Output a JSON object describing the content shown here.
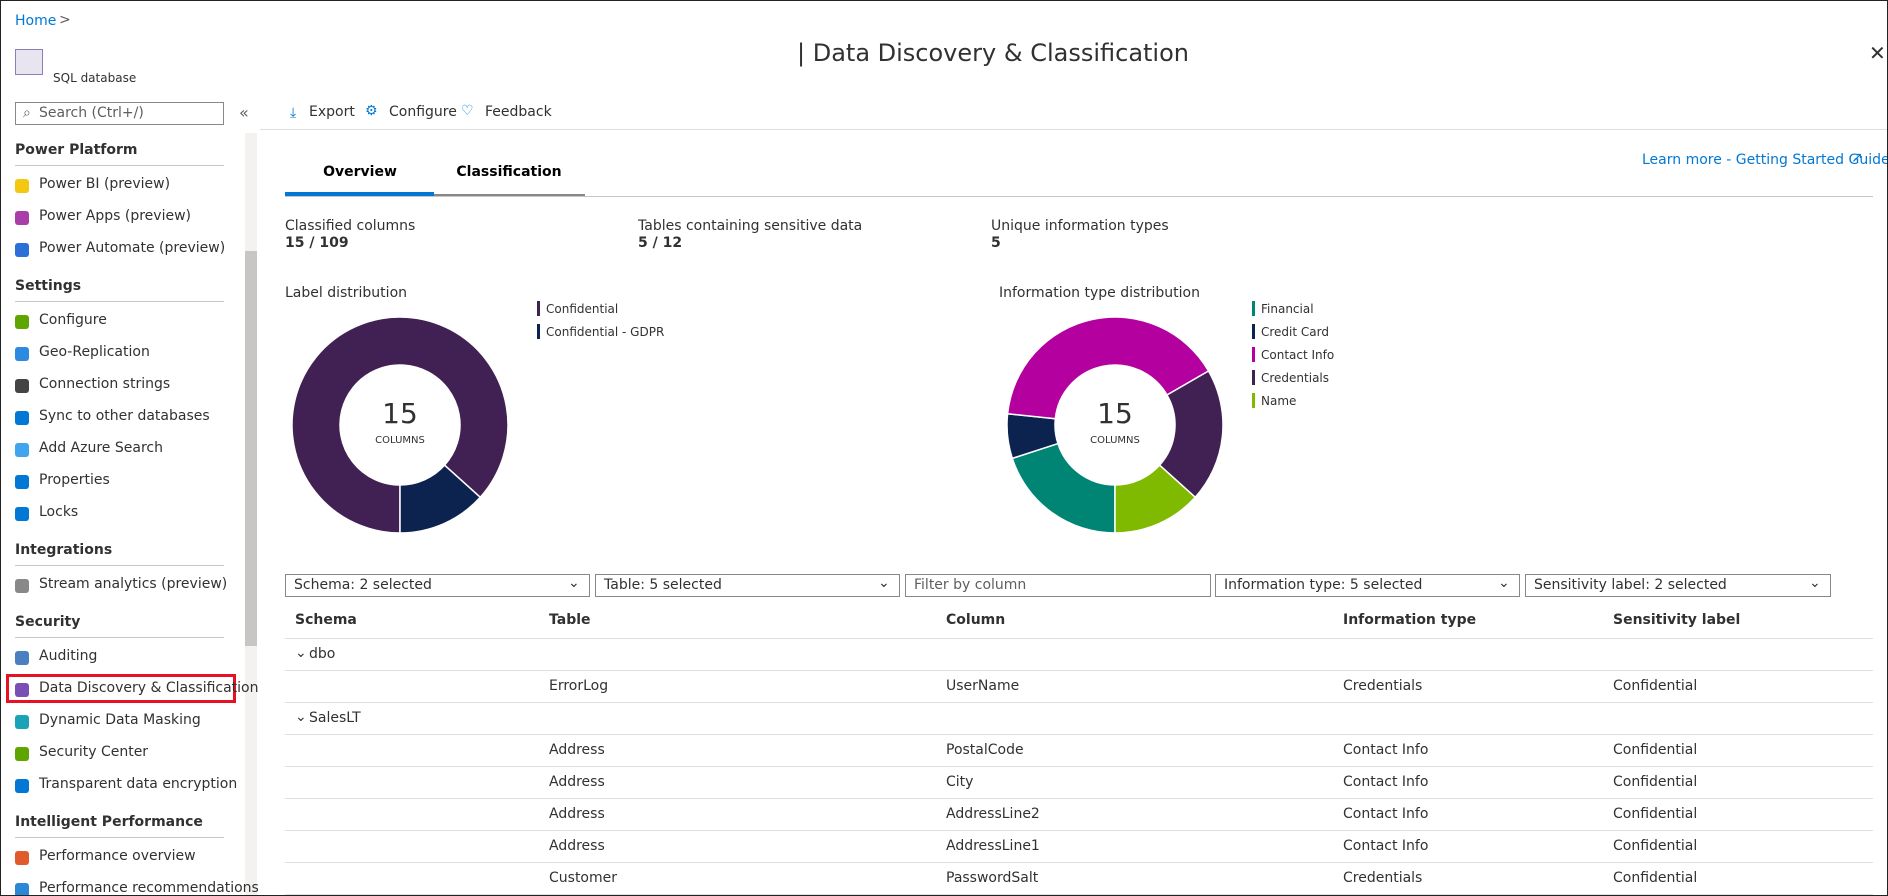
{
  "breadcrumb": {
    "home": "Home"
  },
  "resource": {
    "title": "| Data Discovery & Classification",
    "subtitle": "SQL database"
  },
  "sidebar": {
    "search_placeholder": "Search (Ctrl+/)",
    "sections": [
      {
        "title": "Power Platform",
        "items": [
          "Power BI (preview)",
          "Power Apps (preview)",
          "Power Automate (preview)"
        ]
      },
      {
        "title": "Settings",
        "items": [
          "Configure",
          "Geo-Replication",
          "Connection strings",
          "Sync to other databases",
          "Add Azure Search",
          "Properties",
          "Locks"
        ]
      },
      {
        "title": "Integrations",
        "items": [
          "Stream analytics (preview)"
        ]
      },
      {
        "title": "Security",
        "items": [
          "Auditing",
          "Data Discovery & Classification",
          "Dynamic Data Masking",
          "Security Center",
          "Transparent data encryption"
        ]
      },
      {
        "title": "Intelligent Performance",
        "items": [
          "Performance overview",
          "Performance recommendations"
        ]
      }
    ]
  },
  "toolbar": [
    "Export",
    "Configure",
    "Feedback"
  ],
  "tabs": [
    "Overview",
    "Classification"
  ],
  "learn_more": "Learn more - Getting Started Guide",
  "stats": [
    {
      "label": "Classified columns",
      "value": "15 / 109"
    },
    {
      "label": "Tables containing sensitive data",
      "value": "5 / 12"
    },
    {
      "label": "Unique information types",
      "value": "5"
    }
  ],
  "chart_data": [
    {
      "type": "donut",
      "title": "Label distribution",
      "total": 15,
      "center_label": "COLUMNS",
      "categories": [
        "Confidential",
        "Confidential - GDPR"
      ],
      "values": [
        13,
        2
      ],
      "colors": [
        "#412153",
        "#0c2350"
      ]
    },
    {
      "type": "donut",
      "title": "Information type distribution",
      "total": 15,
      "center_label": "COLUMNS",
      "categories": [
        "Financial",
        "Credit Card",
        "Contact Info",
        "Credentials",
        "Name"
      ],
      "values": [
        3,
        1,
        6,
        3,
        2
      ],
      "colors": [
        "#008575",
        "#0c2350",
        "#b4009e",
        "#412153",
        "#7fba00"
      ]
    }
  ],
  "filters": [
    "Schema: 2 selected",
    "Table: 5 selected",
    "Filter by column",
    "Information type: 5 selected",
    "Sensitivity label: 2 selected"
  ],
  "table": {
    "headers": [
      "Schema",
      "Table",
      "Column",
      "Information type",
      "Sensitivity label"
    ],
    "groups": [
      {
        "name": "dbo",
        "rows": [
          [
            "ErrorLog",
            "UserName",
            "Credentials",
            "Confidential"
          ]
        ]
      },
      {
        "name": "SalesLT",
        "rows": [
          [
            "Address",
            "PostalCode",
            "Contact Info",
            "Confidential"
          ],
          [
            "Address",
            "City",
            "Contact Info",
            "Confidential"
          ],
          [
            "Address",
            "AddressLine2",
            "Contact Info",
            "Confidential"
          ],
          [
            "Address",
            "AddressLine1",
            "Contact Info",
            "Confidential"
          ],
          [
            "Customer",
            "PasswordSalt",
            "Credentials",
            "Confidential"
          ]
        ]
      }
    ]
  }
}
